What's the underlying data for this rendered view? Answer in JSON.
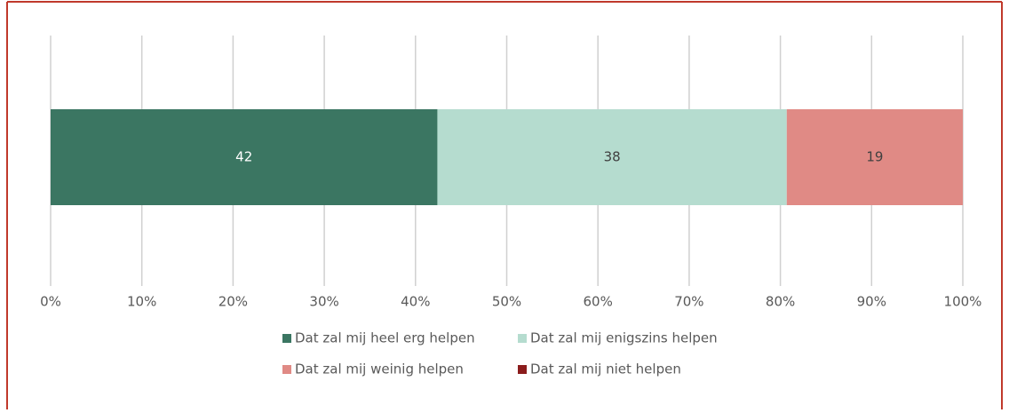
{
  "chart_data": {
    "type": "stacked-barh",
    "series": [
      {
        "name": "Dat zal mij heel erg helpen",
        "color": "#3b7662",
        "values": [
          42.4
        ],
        "value_labels": [
          "42"
        ],
        "label_color": "#ffffff"
      },
      {
        "name": "Dat zal mij enigszins helpen",
        "color": "#b5dccf",
        "values": [
          38.3
        ],
        "value_labels": [
          "38"
        ],
        "label_color": "#404040"
      },
      {
        "name": "Dat zal mij weinig helpen",
        "color": "#e08a85",
        "values": [
          19.3
        ],
        "value_labels": [
          "19"
        ],
        "label_color": "#404040"
      },
      {
        "name": "Dat zal mij niet helpen",
        "color": "#8b1c1c",
        "values": [
          0
        ]
      }
    ],
    "xlim": [
      0,
      100
    ],
    "xticks": [
      {
        "value": 0,
        "label": "0%"
      },
      {
        "value": 10,
        "label": "10%"
      },
      {
        "value": 20,
        "label": "20%"
      },
      {
        "value": 30,
        "label": "30%"
      },
      {
        "value": 40,
        "label": "40%"
      },
      {
        "value": 50,
        "label": "50%"
      },
      {
        "value": 60,
        "label": "60%"
      },
      {
        "value": 70,
        "label": "70%"
      },
      {
        "value": 80,
        "label": "80%"
      },
      {
        "value": 90,
        "label": "90%"
      },
      {
        "value": 100,
        "label": "100%"
      }
    ],
    "grid": true,
    "legend": "bottom"
  }
}
